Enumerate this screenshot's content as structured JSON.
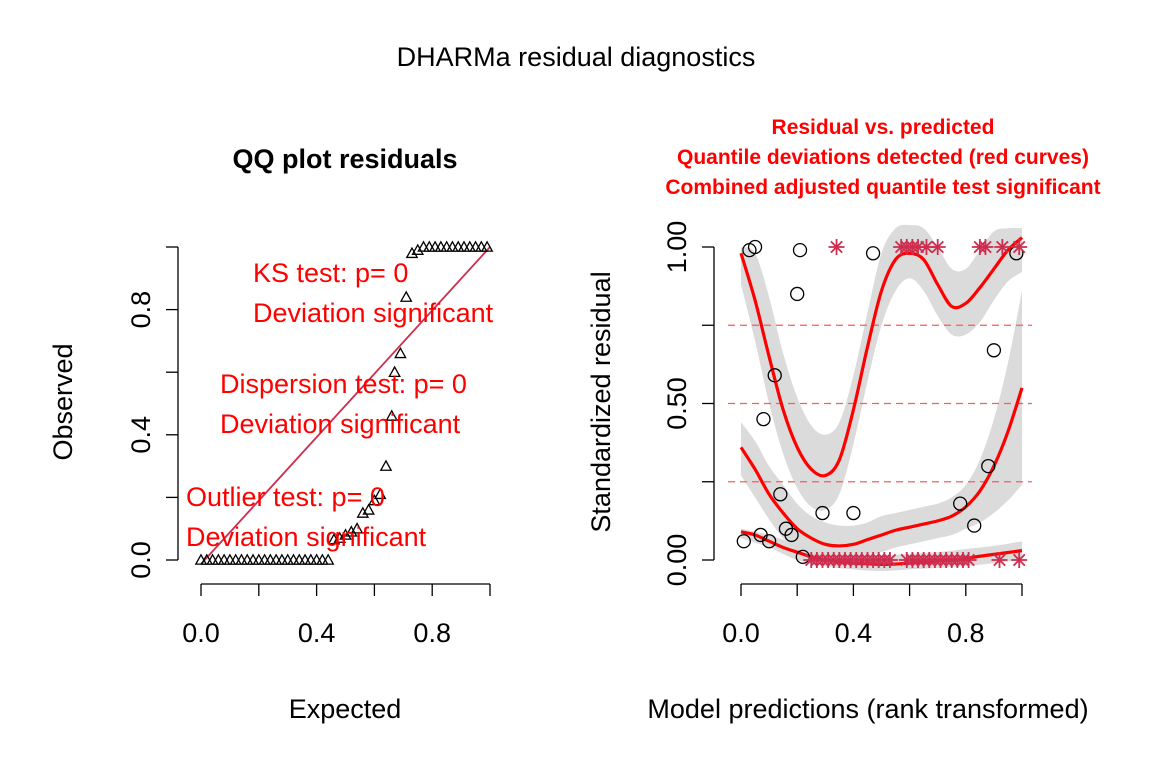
{
  "title": "DHARMa residual diagnostics",
  "colors": {
    "axis": "#000000",
    "red": "#ff0000",
    "crimson": "#cd2d4f",
    "band": "#d9d9d9",
    "dashed": "#ff5a5a"
  },
  "chart_data": [
    {
      "type": "scatter",
      "title": "QQ plot residuals",
      "xlabel": "Expected",
      "ylabel": "Observed",
      "xlim": [
        0,
        1
      ],
      "ylim": [
        0,
        1
      ],
      "x_ticks": [
        "0.0",
        "0.4",
        "0.8"
      ],
      "y_ticks": [
        "0.0",
        "0.4",
        "0.8"
      ],
      "marker": "triangle",
      "reference_line": {
        "from": [
          0,
          0
        ],
        "to": [
          1,
          1
        ]
      },
      "points": [
        [
          0.0,
          0.0
        ],
        [
          0.02,
          0.0
        ],
        [
          0.04,
          0.0
        ],
        [
          0.06,
          0.0
        ],
        [
          0.08,
          0.0
        ],
        [
          0.1,
          0.0
        ],
        [
          0.12,
          0.0
        ],
        [
          0.14,
          0.0
        ],
        [
          0.16,
          0.0
        ],
        [
          0.18,
          0.0
        ],
        [
          0.2,
          0.0
        ],
        [
          0.22,
          0.0
        ],
        [
          0.24,
          0.0
        ],
        [
          0.26,
          0.0
        ],
        [
          0.28,
          0.0
        ],
        [
          0.3,
          0.0
        ],
        [
          0.32,
          0.0
        ],
        [
          0.34,
          0.0
        ],
        [
          0.36,
          0.0
        ],
        [
          0.38,
          0.0
        ],
        [
          0.4,
          0.0
        ],
        [
          0.42,
          0.0
        ],
        [
          0.44,
          0.0
        ],
        [
          0.46,
          0.065
        ],
        [
          0.48,
          0.07
        ],
        [
          0.5,
          0.08
        ],
        [
          0.52,
          0.09
        ],
        [
          0.54,
          0.1
        ],
        [
          0.56,
          0.15
        ],
        [
          0.58,
          0.16
        ],
        [
          0.6,
          0.19
        ],
        [
          0.62,
          0.21
        ],
        [
          0.64,
          0.3
        ],
        [
          0.66,
          0.46
        ],
        [
          0.67,
          0.6
        ],
        [
          0.69,
          0.66
        ],
        [
          0.71,
          0.84
        ],
        [
          0.73,
          0.98
        ],
        [
          0.75,
          0.99
        ],
        [
          0.77,
          1.0
        ],
        [
          0.79,
          1.0
        ],
        [
          0.81,
          1.0
        ],
        [
          0.83,
          1.0
        ],
        [
          0.85,
          1.0
        ],
        [
          0.87,
          1.0
        ],
        [
          0.89,
          1.0
        ],
        [
          0.91,
          1.0
        ],
        [
          0.93,
          1.0
        ],
        [
          0.95,
          1.0
        ],
        [
          0.97,
          1.0
        ],
        [
          0.99,
          1.0
        ]
      ],
      "annotations": [
        {
          "lines": [
            "KS test: p= 0",
            "Deviation  significant"
          ]
        },
        {
          "lines": [
            "Dispersion test: p= 0",
            "Deviation  significant"
          ]
        },
        {
          "lines": [
            "Outlier test: p= 0",
            "Deviation  significant"
          ]
        }
      ]
    },
    {
      "type": "scatter",
      "title_lines": [
        "Residual vs. predicted",
        "Quantile deviations detected (red curves)",
        "Combined adjusted quantile test significant"
      ],
      "xlabel": "Model predictions (rank transformed)",
      "ylabel": "Standardized residual",
      "xlim": [
        0,
        1
      ],
      "ylim": [
        0,
        1
      ],
      "x_ticks": [
        "0.0",
        "0.4",
        "0.8"
      ],
      "y_ticks": [
        "0.00",
        "0.25",
        "0.50",
        "0.75",
        "1.00"
      ],
      "y_tick_labels_shown": [
        "0.00",
        "0.50",
        "1.00"
      ],
      "quantile_lines": [
        0.25,
        0.5,
        0.75
      ],
      "circles": [
        [
          0.01,
          0.06
        ],
        [
          0.03,
          0.99
        ],
        [
          0.05,
          1.0
        ],
        [
          0.07,
          0.08
        ],
        [
          0.08,
          0.45
        ],
        [
          0.1,
          0.06
        ],
        [
          0.12,
          0.59
        ],
        [
          0.14,
          0.21
        ],
        [
          0.16,
          0.1
        ],
        [
          0.18,
          0.08
        ],
        [
          0.2,
          0.85
        ],
        [
          0.21,
          0.99
        ],
        [
          0.22,
          0.01
        ],
        [
          0.29,
          0.15
        ],
        [
          0.4,
          0.15
        ],
        [
          0.47,
          0.98
        ],
        [
          0.78,
          0.18
        ],
        [
          0.83,
          0.11
        ],
        [
          0.88,
          0.3
        ],
        [
          0.9,
          0.67
        ],
        [
          0.98,
          0.98
        ]
      ],
      "outlier_stars": [
        [
          0.34,
          1.0
        ],
        [
          0.57,
          1.0
        ],
        [
          0.59,
          1.0
        ],
        [
          0.61,
          1.0
        ],
        [
          0.63,
          1.0
        ],
        [
          0.66,
          1.0
        ],
        [
          0.7,
          1.0
        ],
        [
          0.85,
          1.0
        ],
        [
          0.87,
          1.0
        ],
        [
          0.93,
          1.0
        ],
        [
          0.99,
          1.0
        ],
        [
          0.25,
          0.0
        ],
        [
          0.27,
          0.0
        ],
        [
          0.29,
          0.0
        ],
        [
          0.31,
          0.0
        ],
        [
          0.33,
          0.0
        ],
        [
          0.35,
          0.0
        ],
        [
          0.37,
          0.0
        ],
        [
          0.39,
          0.0
        ],
        [
          0.41,
          0.0
        ],
        [
          0.43,
          0.0
        ],
        [
          0.45,
          0.0
        ],
        [
          0.47,
          0.0
        ],
        [
          0.49,
          0.0
        ],
        [
          0.51,
          0.0
        ],
        [
          0.53,
          0.0
        ],
        [
          0.59,
          0.0
        ],
        [
          0.61,
          0.0
        ],
        [
          0.63,
          0.0
        ],
        [
          0.65,
          0.0
        ],
        [
          0.67,
          0.0
        ],
        [
          0.69,
          0.0
        ],
        [
          0.71,
          0.0
        ],
        [
          0.73,
          0.0
        ],
        [
          0.75,
          0.0
        ],
        [
          0.77,
          0.0
        ],
        [
          0.79,
          0.0
        ],
        [
          0.81,
          0.0
        ],
        [
          0.92,
          0.0
        ],
        [
          0.99,
          0.0
        ]
      ],
      "quantile_curves": [
        {
          "quantile": 0.75,
          "points": [
            [
              0,
              0.98
            ],
            [
              0.05,
              0.83
            ],
            [
              0.1,
              0.65
            ],
            [
              0.15,
              0.48
            ],
            [
              0.2,
              0.36
            ],
            [
              0.25,
              0.29
            ],
            [
              0.3,
              0.27
            ],
            [
              0.35,
              0.32
            ],
            [
              0.4,
              0.48
            ],
            [
              0.45,
              0.68
            ],
            [
              0.5,
              0.86
            ],
            [
              0.55,
              0.96
            ],
            [
              0.6,
              0.98
            ],
            [
              0.65,
              0.96
            ],
            [
              0.7,
              0.88
            ],
            [
              0.75,
              0.81
            ],
            [
              0.8,
              0.82
            ],
            [
              0.85,
              0.87
            ],
            [
              0.9,
              0.93
            ],
            [
              0.95,
              0.99
            ],
            [
              1.0,
              1.03
            ]
          ],
          "band_upper": [
            [
              0,
              1.0
            ],
            [
              0.05,
              0.98
            ],
            [
              0.1,
              0.84
            ],
            [
              0.15,
              0.66
            ],
            [
              0.2,
              0.52
            ],
            [
              0.25,
              0.43
            ],
            [
              0.3,
              0.4
            ],
            [
              0.35,
              0.44
            ],
            [
              0.4,
              0.59
            ],
            [
              0.45,
              0.79
            ],
            [
              0.5,
              0.98
            ],
            [
              0.55,
              1.06
            ],
            [
              0.6,
              1.07
            ],
            [
              0.65,
              1.06
            ],
            [
              0.7,
              1.0
            ],
            [
              0.75,
              0.93
            ],
            [
              0.8,
              0.93
            ],
            [
              0.85,
              0.99
            ],
            [
              0.9,
              1.05
            ],
            [
              0.95,
              1.06
            ],
            [
              1.0,
              1.06
            ]
          ],
          "band_lower": [
            [
              0,
              0.88
            ],
            [
              0.05,
              0.7
            ],
            [
              0.1,
              0.5
            ],
            [
              0.15,
              0.34
            ],
            [
              0.2,
              0.23
            ],
            [
              0.25,
              0.17
            ],
            [
              0.3,
              0.16
            ],
            [
              0.35,
              0.21
            ],
            [
              0.4,
              0.37
            ],
            [
              0.45,
              0.57
            ],
            [
              0.5,
              0.75
            ],
            [
              0.55,
              0.86
            ],
            [
              0.6,
              0.9
            ],
            [
              0.65,
              0.86
            ],
            [
              0.7,
              0.78
            ],
            [
              0.75,
              0.72
            ],
            [
              0.8,
              0.72
            ],
            [
              0.85,
              0.76
            ],
            [
              0.9,
              0.83
            ],
            [
              0.95,
              0.89
            ],
            [
              1.0,
              0.92
            ]
          ]
        },
        {
          "quantile": 0.5,
          "points": [
            [
              0,
              0.36
            ],
            [
              0.05,
              0.29
            ],
            [
              0.1,
              0.21
            ],
            [
              0.15,
              0.15
            ],
            [
              0.2,
              0.1
            ],
            [
              0.25,
              0.07
            ],
            [
              0.3,
              0.05
            ],
            [
              0.35,
              0.045
            ],
            [
              0.4,
              0.05
            ],
            [
              0.45,
              0.065
            ],
            [
              0.5,
              0.08
            ],
            [
              0.55,
              0.095
            ],
            [
              0.6,
              0.105
            ],
            [
              0.65,
              0.115
            ],
            [
              0.7,
              0.125
            ],
            [
              0.75,
              0.14
            ],
            [
              0.8,
              0.17
            ],
            [
              0.85,
              0.22
            ],
            [
              0.9,
              0.3
            ],
            [
              0.95,
              0.41
            ],
            [
              1.0,
              0.55
            ]
          ],
          "band_upper": [
            [
              0,
              0.44
            ],
            [
              0.05,
              0.38
            ],
            [
              0.1,
              0.3
            ],
            [
              0.15,
              0.24
            ],
            [
              0.2,
              0.18
            ],
            [
              0.25,
              0.14
            ],
            [
              0.3,
              0.12
            ],
            [
              0.35,
              0.11
            ],
            [
              0.4,
              0.11
            ],
            [
              0.45,
              0.12
            ],
            [
              0.5,
              0.14
            ],
            [
              0.55,
              0.15
            ],
            [
              0.6,
              0.16
            ],
            [
              0.65,
              0.17
            ],
            [
              0.7,
              0.18
            ],
            [
              0.75,
              0.2
            ],
            [
              0.8,
              0.24
            ],
            [
              0.85,
              0.32
            ],
            [
              0.9,
              0.45
            ],
            [
              0.95,
              0.63
            ],
            [
              1.0,
              0.86
            ]
          ],
          "band_lower": [
            [
              0,
              0.27
            ],
            [
              0.05,
              0.2
            ],
            [
              0.1,
              0.13
            ],
            [
              0.15,
              0.07
            ],
            [
              0.2,
              0.03
            ],
            [
              0.25,
              0.01
            ],
            [
              0.3,
              0.0
            ],
            [
              0.35,
              -0.01
            ],
            [
              0.4,
              0.0
            ],
            [
              0.45,
              0.01
            ],
            [
              0.5,
              0.025
            ],
            [
              0.55,
              0.04
            ],
            [
              0.6,
              0.05
            ],
            [
              0.65,
              0.06
            ],
            [
              0.7,
              0.07
            ],
            [
              0.75,
              0.08
            ],
            [
              0.8,
              0.1
            ],
            [
              0.85,
              0.12
            ],
            [
              0.9,
              0.15
            ],
            [
              0.95,
              0.19
            ],
            [
              1.0,
              0.24
            ]
          ]
        },
        {
          "quantile": 0.25,
          "points": [
            [
              0,
              0.09
            ],
            [
              0.05,
              0.08
            ],
            [
              0.1,
              0.06
            ],
            [
              0.15,
              0.04
            ],
            [
              0.2,
              0.025
            ],
            [
              0.25,
              0.01
            ],
            [
              0.3,
              0.0
            ],
            [
              0.35,
              -0.005
            ],
            [
              0.4,
              -0.01
            ],
            [
              0.45,
              -0.012
            ],
            [
              0.5,
              -0.014
            ],
            [
              0.55,
              -0.013
            ],
            [
              0.6,
              -0.01
            ],
            [
              0.65,
              -0.007
            ],
            [
              0.7,
              -0.003
            ],
            [
              0.75,
              0.0
            ],
            [
              0.8,
              0.005
            ],
            [
              0.85,
              0.012
            ],
            [
              0.9,
              0.018
            ],
            [
              0.95,
              0.024
            ],
            [
              1.0,
              0.03
            ]
          ],
          "band_upper": [
            [
              0,
              0.1
            ],
            [
              0.1,
              0.08
            ],
            [
              0.2,
              0.05
            ],
            [
              0.3,
              0.03
            ],
            [
              0.4,
              0.02
            ],
            [
              0.5,
              0.015
            ],
            [
              0.6,
              0.02
            ],
            [
              0.7,
              0.025
            ],
            [
              0.8,
              0.035
            ],
            [
              0.9,
              0.045
            ],
            [
              1.0,
              0.06
            ]
          ],
          "band_lower": [
            [
              0,
              0.07
            ],
            [
              0.1,
              0.04
            ],
            [
              0.2,
              0.0
            ],
            [
              0.3,
              -0.02
            ],
            [
              0.4,
              -0.03
            ],
            [
              0.5,
              -0.035
            ],
            [
              0.6,
              -0.03
            ],
            [
              0.7,
              -0.025
            ],
            [
              0.8,
              -0.02
            ],
            [
              0.9,
              -0.01
            ],
            [
              1.0,
              0.0
            ]
          ]
        }
      ]
    }
  ]
}
